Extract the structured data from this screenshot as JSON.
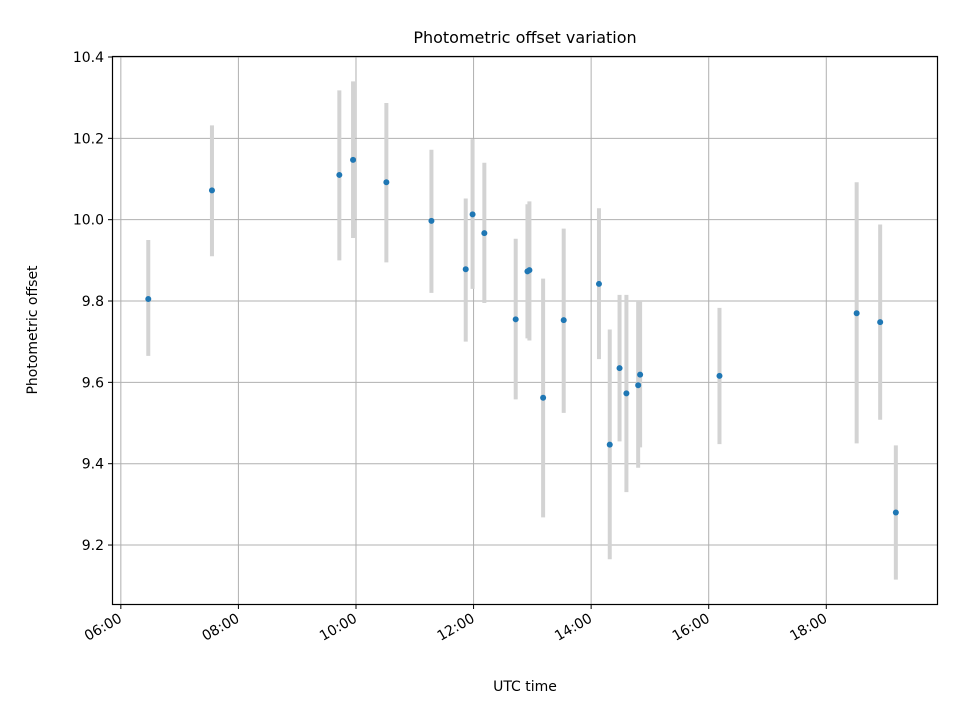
{
  "chart_data": {
    "type": "scatter",
    "title": "Photometric offset variation",
    "xlabel": "UTC time",
    "ylabel": "Photometric offset",
    "x_format": "HH:MM",
    "xlim": [
      "05:52",
      "19:53"
    ],
    "ylim": [
      9.055,
      10.4
    ],
    "x_ticks": [
      "06:00",
      "08:00",
      "10:00",
      "12:00",
      "14:00",
      "16:00",
      "18:00"
    ],
    "y_ticks": [
      "9.2",
      "9.4",
      "9.6",
      "9.8",
      "10.0",
      "10.2",
      "10.4"
    ],
    "grid": true,
    "colors": {
      "point": "#1f77b4",
      "errorbar": "#d3d3d3",
      "grid": "#b0b0b0"
    },
    "series": [
      {
        "points": [
          {
            "x": "06:28",
            "y": 9.805,
            "low": 9.665,
            "high": 9.95
          },
          {
            "x": "07:33",
            "y": 10.072,
            "low": 9.91,
            "high": 10.232
          },
          {
            "x": "09:43",
            "y": 10.11,
            "low": 9.9,
            "high": 10.318
          },
          {
            "x": "09:57",
            "y": 10.147,
            "low": 9.955,
            "high": 10.34
          },
          {
            "x": "10:31",
            "y": 10.092,
            "low": 9.895,
            "high": 10.287
          },
          {
            "x": "11:17",
            "y": 9.997,
            "low": 9.82,
            "high": 10.172
          },
          {
            "x": "11:52",
            "y": 9.878,
            "low": 9.7,
            "high": 10.052
          },
          {
            "x": "11:59",
            "y": 10.013,
            "low": 9.83,
            "high": 10.198
          },
          {
            "x": "12:11",
            "y": 9.967,
            "low": 9.795,
            "high": 10.14
          },
          {
            "x": "12:43",
            "y": 9.755,
            "low": 9.558,
            "high": 9.953
          },
          {
            "x": "12:55",
            "y": 9.873,
            "low": 9.708,
            "high": 10.038
          },
          {
            "x": "12:57",
            "y": 9.876,
            "low": 9.703,
            "high": 10.045
          },
          {
            "x": "13:11",
            "y": 9.562,
            "low": 9.268,
            "high": 9.855
          },
          {
            "x": "13:32",
            "y": 9.753,
            "low": 9.525,
            "high": 9.978
          },
          {
            "x": "14:08",
            "y": 9.842,
            "low": 9.657,
            "high": 10.028
          },
          {
            "x": "14:19",
            "y": 9.447,
            "low": 9.165,
            "high": 9.73
          },
          {
            "x": "14:29",
            "y": 9.635,
            "low": 9.455,
            "high": 9.815
          },
          {
            "x": "14:36",
            "y": 9.573,
            "low": 9.33,
            "high": 9.815
          },
          {
            "x": "14:48",
            "y": 9.593,
            "low": 9.39,
            "high": 9.8
          },
          {
            "x": "14:50",
            "y": 9.619,
            "low": 9.44,
            "high": 9.8
          },
          {
            "x": "16:11",
            "y": 9.616,
            "low": 9.448,
            "high": 9.783
          },
          {
            "x": "18:31",
            "y": 9.77,
            "low": 9.45,
            "high": 10.092
          },
          {
            "x": "18:55",
            "y": 9.748,
            "low": 9.508,
            "high": 9.988
          },
          {
            "x": "19:11",
            "y": 9.28,
            "low": 9.115,
            "high": 9.445
          }
        ]
      }
    ]
  }
}
